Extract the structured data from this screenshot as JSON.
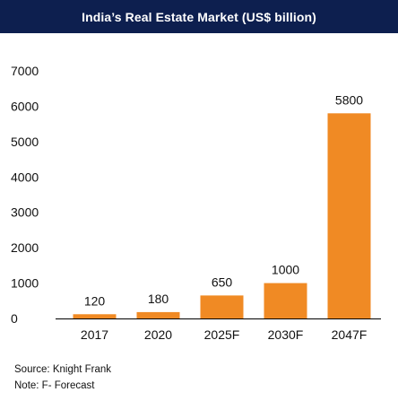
{
  "chart_data": {
    "type": "bar",
    "title": "India’s Real Estate Market (US$ billion)",
    "categories": [
      "2017",
      "2020",
      "2025F",
      "2030F",
      "2047F"
    ],
    "values": [
      120,
      180,
      650,
      1000,
      5800
    ],
    "data_labels": [
      "120",
      "180",
      "650",
      "1000",
      "5800"
    ],
    "y_ticks": [
      "7000",
      "6000",
      "5000",
      "4000",
      "3000",
      "2000",
      "1000",
      "0"
    ],
    "ylim": [
      0,
      7000
    ],
    "xlabel": "",
    "ylabel": "",
    "grid": false,
    "legend": "none",
    "bar_color": "#f08a24"
  },
  "colors": {
    "title_background": "#0d1f4f",
    "title_text": "#ffffff",
    "bar": "#f08a24",
    "axis": "#000000"
  },
  "footer": {
    "source": "Source: Knight Frank",
    "note": "Note: F- Forecast"
  }
}
